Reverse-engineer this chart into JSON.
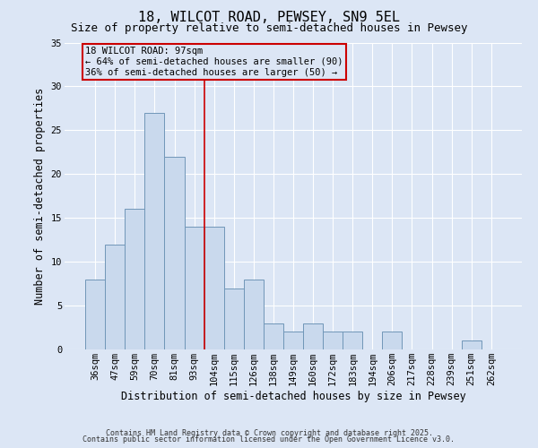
{
  "title": "18, WILCOT ROAD, PEWSEY, SN9 5EL",
  "subtitle": "Size of property relative to semi-detached houses in Pewsey",
  "xlabel": "Distribution of semi-detached houses by size in Pewsey",
  "ylabel": "Number of semi-detached properties",
  "bar_labels": [
    "36sqm",
    "47sqm",
    "59sqm",
    "70sqm",
    "81sqm",
    "93sqm",
    "104sqm",
    "115sqm",
    "126sqm",
    "138sqm",
    "149sqm",
    "160sqm",
    "172sqm",
    "183sqm",
    "194sqm",
    "206sqm",
    "217sqm",
    "228sqm",
    "239sqm",
    "251sqm",
    "262sqm"
  ],
  "bar_values": [
    8,
    12,
    16,
    27,
    22,
    14,
    14,
    7,
    8,
    3,
    2,
    3,
    2,
    2,
    0,
    2,
    0,
    0,
    0,
    1,
    0
  ],
  "bar_color": "#c9d9ed",
  "bar_edge_color": "#7096b8",
  "vline_x": 5.5,
  "vline_color": "#cc0000",
  "ylim": [
    0,
    35
  ],
  "yticks": [
    0,
    5,
    10,
    15,
    20,
    25,
    30,
    35
  ],
  "annotation_line1": "18 WILCOT ROAD: 97sqm",
  "annotation_line2": "← 64% of semi-detached houses are smaller (90)",
  "annotation_line3": "36% of semi-detached houses are larger (50) →",
  "annotation_box_color": "#cc0000",
  "bg_color": "#dce6f5",
  "footer1": "Contains HM Land Registry data © Crown copyright and database right 2025.",
  "footer2": "Contains public sector information licensed under the Open Government Licence v3.0.",
  "title_fontsize": 11,
  "subtitle_fontsize": 9,
  "axis_label_fontsize": 8.5,
  "tick_fontsize": 7.5,
  "annotation_fontsize": 7.5,
  "footer_fontsize": 6.0
}
